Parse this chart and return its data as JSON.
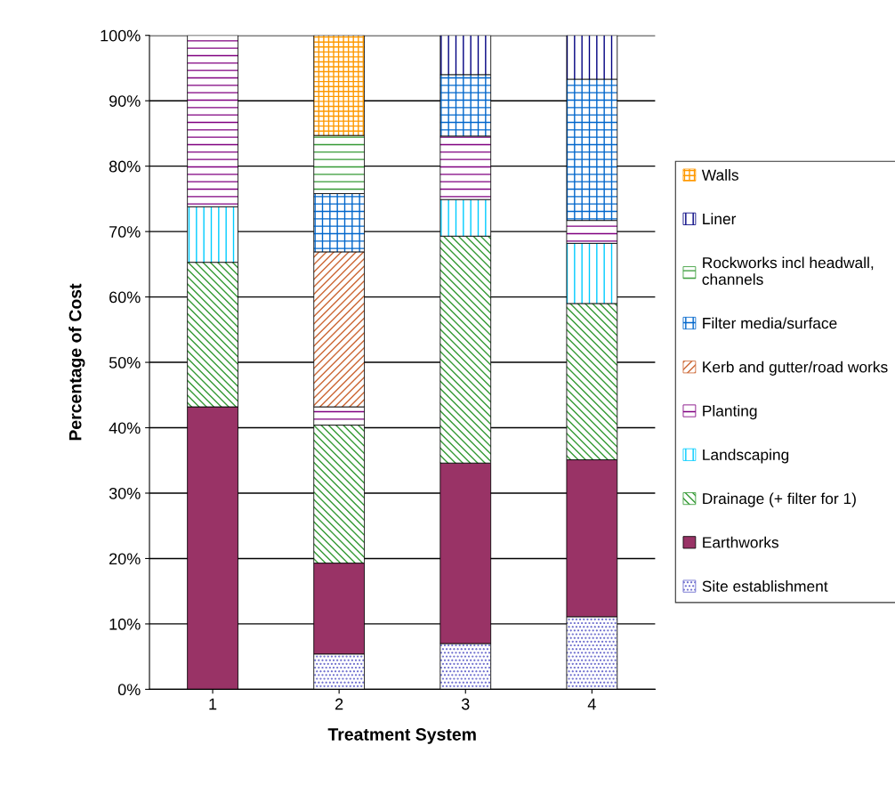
{
  "chart_data": {
    "type": "bar",
    "stacked": true,
    "xlabel": "Treatment System",
    "ylabel": "Percentage of Cost",
    "categories": [
      "1",
      "2",
      "3",
      "4"
    ],
    "series": [
      {
        "name": "Site establishment",
        "color": "#6666cc",
        "values": [
          null,
          5.4,
          7.0,
          11.1
        ]
      },
      {
        "name": "Earthworks",
        "color": "#993366",
        "values": [
          43.2,
          13.9,
          27.6,
          24.0
        ]
      },
      {
        "name": "Drainage (+ filter for 1)",
        "color": "#339933",
        "values": [
          22.1,
          21.1,
          34.7,
          23.9
        ]
      },
      {
        "name": "Landscaping",
        "color": "#00ccff",
        "values": [
          8.5,
          null,
          5.6,
          9.2
        ]
      },
      {
        "name": "Planting",
        "color": "#800080",
        "values": [
          26.2,
          2.8,
          9.7,
          3.5
        ]
      },
      {
        "name": "Kerb and gutter/road works",
        "color": "#cc6633",
        "values": [
          null,
          23.7,
          null,
          null
        ]
      },
      {
        "name": "Filter media/surface",
        "color": "#0066cc",
        "values": [
          null,
          8.9,
          9.4,
          21.6
        ]
      },
      {
        "name": "Rockworks incl headwall,\nchannels",
        "color": "#339933",
        "values": [
          null,
          8.9,
          null,
          null
        ]
      },
      {
        "name": "Liner",
        "color": "#000080",
        "values": [
          null,
          null,
          6.0,
          6.7
        ]
      },
      {
        "name": "Walls",
        "color": "#ff9900",
        "values": [
          null,
          15.3,
          null,
          null
        ]
      }
    ],
    "ylim": [
      0,
      100
    ],
    "yticks": [
      {
        "value": 0,
        "label": "0%"
      },
      {
        "value": 10,
        "label": "10%"
      },
      {
        "value": 20,
        "label": "20%"
      },
      {
        "value": 30,
        "label": "30%"
      },
      {
        "value": 40,
        "label": "40%"
      },
      {
        "value": 50,
        "label": "50%"
      },
      {
        "value": 60,
        "label": "60%"
      },
      {
        "value": 70,
        "label": "70%"
      },
      {
        "value": 80,
        "label": "80%"
      },
      {
        "value": 90,
        "label": "90%"
      },
      {
        "value": 100,
        "label": "100%"
      }
    ],
    "grid": "y",
    "legend": "right"
  }
}
